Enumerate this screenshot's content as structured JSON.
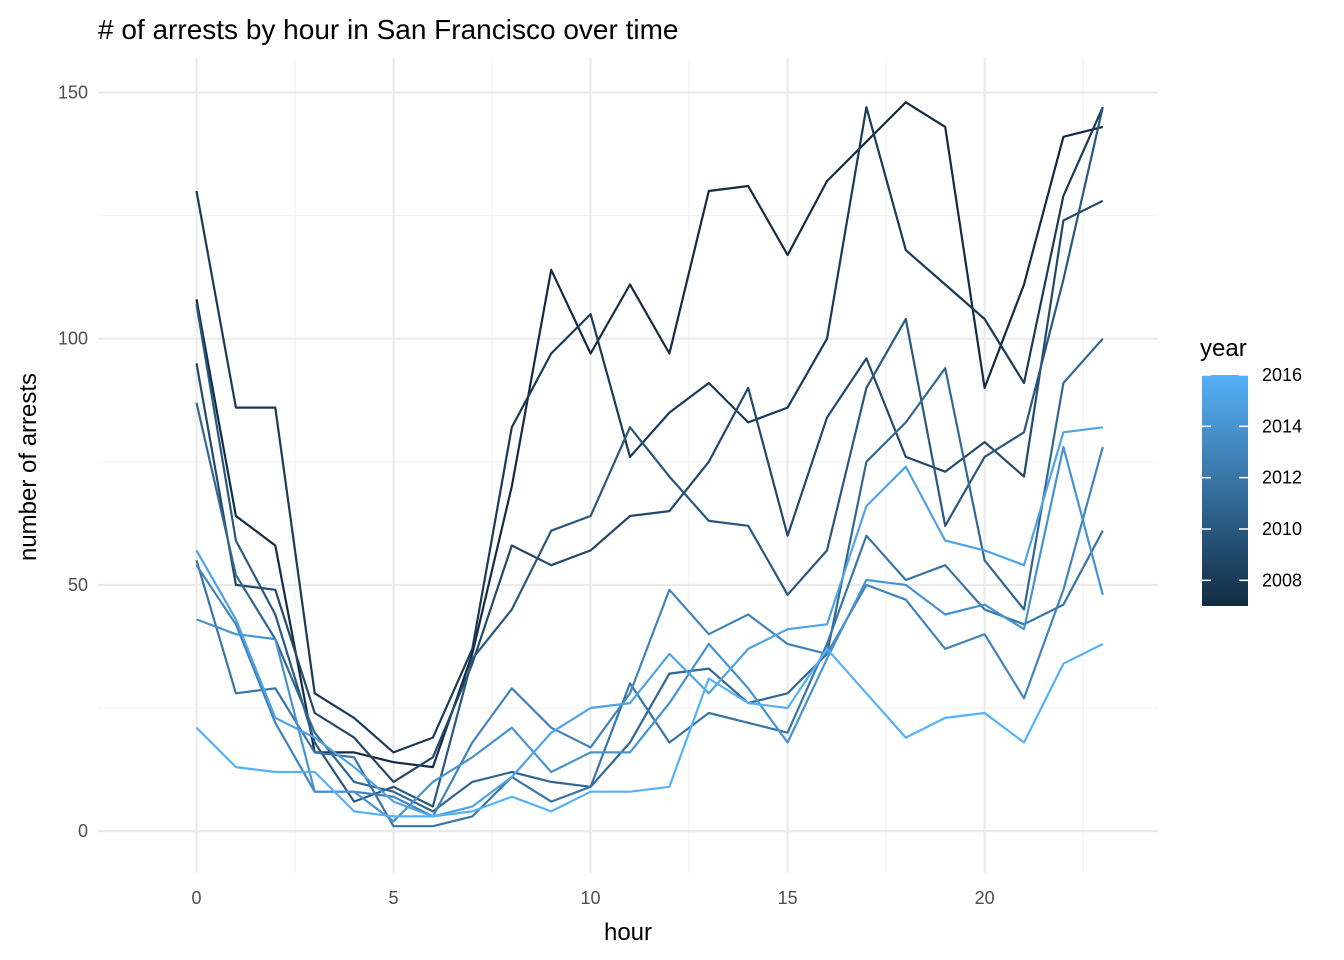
{
  "chart_data": {
    "type": "line",
    "title": "# of arrests by hour in San Francisco over time",
    "xlabel": "hour",
    "ylabel": "number of arrests",
    "x": [
      0,
      1,
      2,
      3,
      4,
      5,
      6,
      7,
      8,
      9,
      10,
      11,
      12,
      13,
      14,
      15,
      16,
      17,
      18,
      19,
      20,
      21,
      22,
      23
    ],
    "xlim": [
      -2.5,
      24.4
    ],
    "ylim": [
      -8.5,
      157
    ],
    "xticks": [
      0,
      5,
      10,
      15,
      20
    ],
    "yticks": [
      0,
      50,
      100,
      150
    ],
    "grid": true,
    "legend": {
      "title": "year",
      "position": "right",
      "type": "colorbar",
      "range": [
        2007,
        2016
      ],
      "ticks": [
        2016,
        2014,
        2012,
        2010,
        2008
      ],
      "low_color": "#132B43",
      "high_color": "#56B1F7"
    },
    "series": [
      {
        "year": 2007,
        "values": [
          108,
          64,
          58,
          16,
          16,
          14,
          13,
          36,
          70,
          114,
          97,
          111,
          97,
          130,
          131,
          117,
          132,
          140,
          148,
          143,
          90,
          111,
          141,
          143
        ]
      },
      {
        "year": 2008,
        "values": [
          130,
          86,
          86,
          28,
          23,
          16,
          19,
          37,
          82,
          97,
          105,
          76,
          85,
          91,
          83,
          86,
          100,
          147,
          118,
          111,
          104,
          91,
          129,
          147
        ]
      },
      {
        "year": 2009,
        "values": [
          95,
          50,
          49,
          24,
          19,
          10,
          15,
          34,
          58,
          54,
          57,
          64,
          65,
          75,
          90,
          60,
          84,
          96,
          76,
          73,
          79,
          72,
          124,
          128
        ]
      },
      {
        "year": 2010,
        "values": [
          107,
          59,
          44,
          18,
          6,
          9,
          5,
          35,
          45,
          61,
          64,
          82,
          72,
          63,
          62,
          48,
          57,
          90,
          104,
          62,
          76,
          81,
          112,
          147
        ]
      },
      {
        "year": 2011,
        "values": [
          87,
          52,
          39,
          20,
          10,
          8,
          4,
          10,
          12,
          10,
          9,
          18,
          32,
          33,
          26,
          28,
          36,
          75,
          83,
          94,
          55,
          45,
          91,
          100
        ]
      },
      {
        "year": 2012,
        "values": [
          55,
          28,
          29,
          16,
          15,
          1,
          1,
          3,
          11,
          6,
          9,
          30,
          18,
          24,
          22,
          20,
          38,
          60,
          51,
          54,
          45,
          42,
          46,
          61
        ]
      },
      {
        "year": 2013,
        "values": [
          54,
          42,
          22,
          8,
          8,
          7,
          3,
          18,
          29,
          21,
          17,
          28,
          49,
          40,
          44,
          38,
          36,
          50,
          47,
          37,
          40,
          27,
          49,
          78
        ]
      },
      {
        "year": 2014,
        "values": [
          43,
          40,
          39,
          8,
          8,
          2,
          10,
          15,
          21,
          12,
          16,
          16,
          26,
          38,
          29,
          18,
          35,
          51,
          50,
          44,
          46,
          41,
          78,
          48
        ]
      },
      {
        "year": 2015,
        "values": [
          57,
          43,
          23,
          19,
          13,
          6,
          3,
          5,
          11,
          20,
          25,
          26,
          36,
          28,
          37,
          41,
          42,
          66,
          74,
          59,
          57,
          54,
          81,
          82
        ]
      },
      {
        "year": 2016,
        "values": [
          21,
          13,
          12,
          12,
          4,
          3,
          3,
          4,
          7,
          4,
          8,
          8,
          9,
          31,
          26,
          25,
          37,
          28,
          19,
          23,
          24,
          18,
          34,
          38
        ]
      }
    ]
  }
}
